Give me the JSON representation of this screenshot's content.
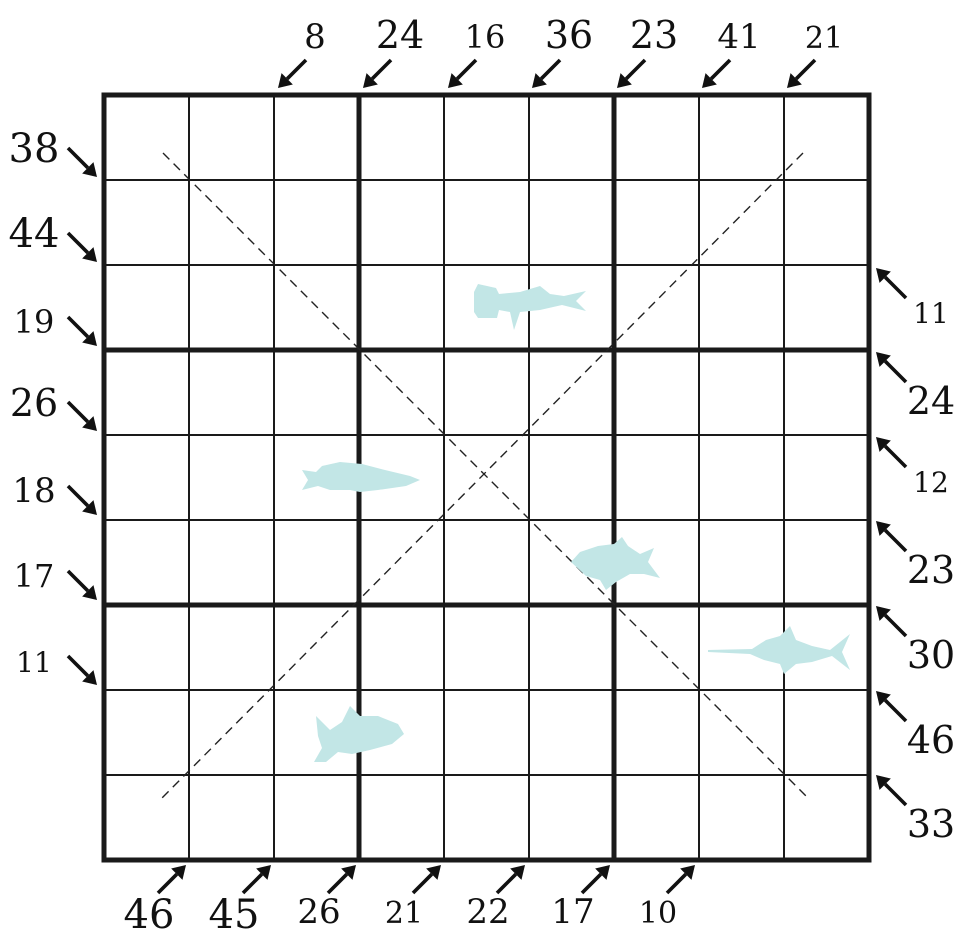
{
  "puzzle": {
    "rows": 9,
    "cols": 9,
    "box_size": 3,
    "diagonals": true,
    "clues": {
      "top": [
        "8",
        "24",
        "16",
        "36",
        "23",
        "41",
        "21"
      ],
      "left": [
        "38",
        "44",
        "19",
        "26",
        "18",
        "17",
        "11"
      ],
      "right": [
        "11",
        "24",
        "12",
        "23",
        "30",
        "46",
        "33"
      ],
      "bottom": [
        "46",
        "45",
        "26",
        "21",
        "22",
        "17",
        "10"
      ]
    },
    "fish": [
      {
        "icon": "hammerhead-shark-icon"
      },
      {
        "icon": "pike-fish-icon"
      },
      {
        "icon": "piranha-fish-icon"
      },
      {
        "icon": "swordfish-icon"
      },
      {
        "icon": "shark-icon"
      }
    ],
    "colors": {
      "grid": "#1a1a1a",
      "fish": "#c2e6e6",
      "diagonal": "#222222",
      "text": "#111111"
    }
  }
}
